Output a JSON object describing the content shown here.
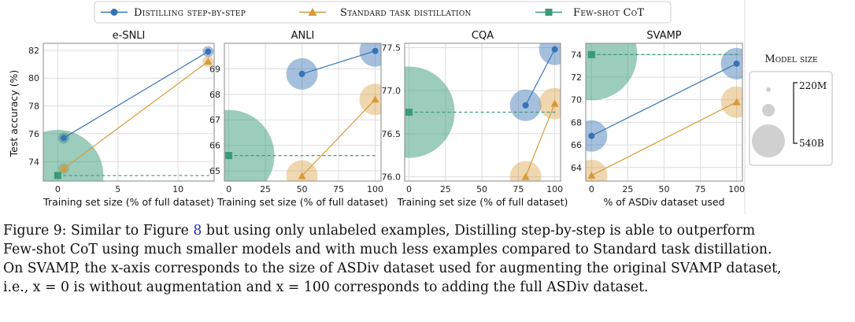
{
  "legend": {
    "entries": [
      {
        "label": "Distilling step-by-step",
        "color": "#3874b4",
        "marker": "circle"
      },
      {
        "label": "Standard task distillation",
        "color": "#d79a3a",
        "marker": "triangle"
      },
      {
        "label": "Few-shot CoT",
        "color": "#3a9a78",
        "marker": "square"
      }
    ]
  },
  "size_legend": {
    "title": "Model size",
    "labels": [
      "220M",
      "540B"
    ]
  },
  "ylabel": "Test accuracy (%)",
  "chart_data": [
    {
      "type": "scatter",
      "title": "e-SNLI",
      "xlabel": "Training set size (% of full dataset)",
      "xlim": [
        -1.2,
        13
      ],
      "ylim": [
        72.6,
        82.5
      ],
      "xticks": [
        0,
        5,
        10
      ],
      "yticks": [
        74,
        76,
        78,
        80,
        82
      ],
      "series": [
        {
          "name": "Distilling step-by-step",
          "x": [
            0.5,
            12.5
          ],
          "y": [
            75.7,
            81.9
          ],
          "bubble": "small"
        },
        {
          "name": "Standard task distillation",
          "x": [
            0.5,
            12.5
          ],
          "y": [
            73.5,
            81.2
          ],
          "bubble": "small"
        },
        {
          "name": "Few-shot CoT",
          "x": [
            0
          ],
          "y": [
            73.0
          ],
          "bubble": "large",
          "hline": true
        }
      ]
    },
    {
      "type": "scatter",
      "title": "ANLI",
      "xlabel": "Training set size (% of full dataset)",
      "xlim": [
        -3,
        104
      ],
      "ylim": [
        64.6,
        70.0
      ],
      "xticks": [
        0,
        25,
        50,
        75,
        100
      ],
      "yticks": [
        65,
        66,
        67,
        68,
        69
      ],
      "series": [
        {
          "name": "Distilling step-by-step",
          "x": [
            50,
            100
          ],
          "y": [
            68.8,
            69.7
          ],
          "bubble": "medium"
        },
        {
          "name": "Standard task distillation",
          "x": [
            50,
            100
          ],
          "y": [
            64.8,
            67.8
          ],
          "bubble": "medium"
        },
        {
          "name": "Few-shot CoT",
          "x": [
            0
          ],
          "y": [
            65.6
          ],
          "bubble": "large",
          "hline": true
        }
      ]
    },
    {
      "type": "scatter",
      "title": "CQA",
      "xlabel": "Training set size (% of full dataset)",
      "xlim": [
        -3,
        104
      ],
      "ylim": [
        75.95,
        77.55
      ],
      "xticks": [
        0,
        25,
        50,
        75,
        100
      ],
      "yticks": [
        76.0,
        76.5,
        77.0,
        77.5
      ],
      "series": [
        {
          "name": "Distilling step-by-step",
          "x": [
            80,
            100
          ],
          "y": [
            76.83,
            77.48
          ],
          "bubble": "medium"
        },
        {
          "name": "Standard task distillation",
          "x": [
            80,
            100
          ],
          "y": [
            76.0,
            76.85
          ],
          "bubble": "medium"
        },
        {
          "name": "Few-shot CoT",
          "x": [
            0
          ],
          "y": [
            76.75
          ],
          "bubble": "large",
          "hline": true
        }
      ]
    },
    {
      "type": "scatter",
      "title": "SVAMP",
      "xlabel": "% of ASDiv dataset used",
      "xlim": [
        -4,
        104
      ],
      "ylim": [
        62.8,
        75.0
      ],
      "xticks": [
        0,
        25,
        50,
        75,
        100
      ],
      "yticks": [
        64,
        66,
        68,
        70,
        72,
        74
      ],
      "series": [
        {
          "name": "Distilling step-by-step",
          "x": [
            0,
            100
          ],
          "y": [
            66.8,
            73.2
          ],
          "bubble": "medium"
        },
        {
          "name": "Standard task distillation",
          "x": [
            0,
            100
          ],
          "y": [
            63.3,
            69.8
          ],
          "bubble": "medium"
        },
        {
          "name": "Few-shot CoT",
          "x": [
            0
          ],
          "y": [
            74.0
          ],
          "bubble": "large",
          "hline": true
        }
      ]
    }
  ],
  "caption": {
    "prefix": "Figure 9: Similar to Figure ",
    "figref": "8",
    "line1_rest": " but using only unlabeled examples, Distilling step-by-step is able to outperform",
    "line2": "Few-shot CoT using much smaller models and with much less examples compared to Standard task distillation.",
    "line3": "On SVAMP, the x-axis corresponds to the size of ASDiv dataset used for augmenting the original SVAMP dataset,",
    "line4": "i.e., x = 0 is without augmentation and x = 100 corresponds to adding the full ASDiv dataset."
  }
}
